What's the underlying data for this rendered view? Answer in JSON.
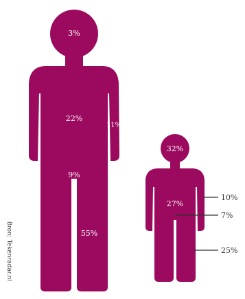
{
  "colors": {
    "figure": "#9b0a5e",
    "background": "#ffffff"
  },
  "adult": {
    "head_pct": "3%",
    "torso_pct": "22%",
    "arm_pct": "11%",
    "pelvis_pct": "9%",
    "legs_pct": "55%"
  },
  "child": {
    "head_pct": "32%",
    "torso_pct": "27%",
    "arm_pct": "10%",
    "pelvis_pct": "7%",
    "legs_pct": "25%"
  },
  "source": "Bron: Tekenradar.nl"
}
